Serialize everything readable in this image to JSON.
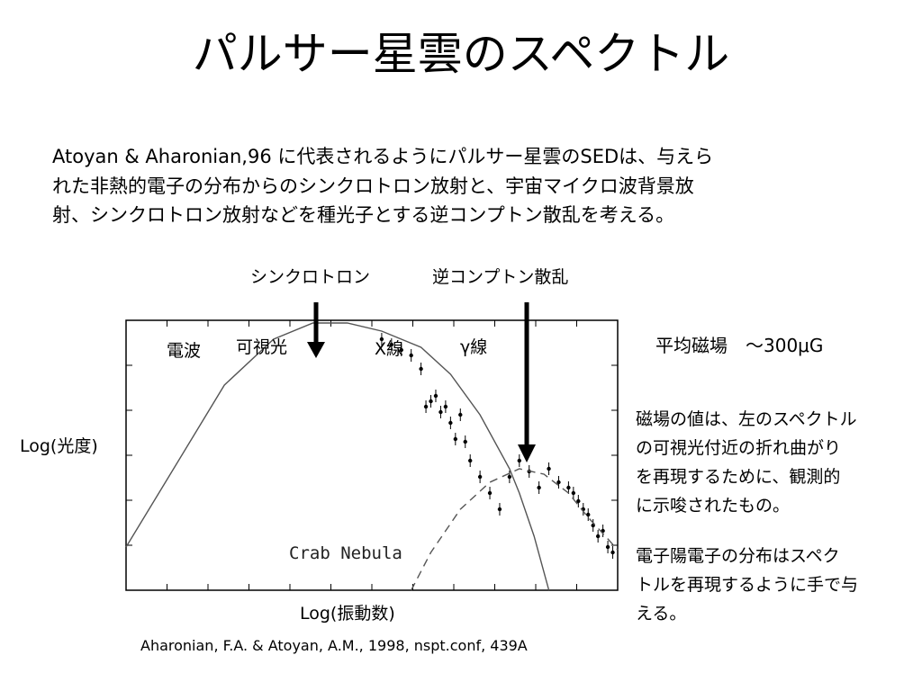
{
  "slide": {
    "title": "パルサー星雲のスペクトル",
    "intro_lines": [
      "Atoyan & Aharonian,96 に代表されるようにパルサー星雲のSEDは、与えら",
      "れた非熱的電子の分布からのシンクロトロン放射と、宇宙マイクロ波背景放",
      "射、シンクロトロン放射などを種光子とする逆コンプトン散乱を考える。"
    ],
    "arrow_label_sync": "シンクロトロン",
    "arrow_label_ic": "逆コンプトン散乱",
    "field_note": "平均磁場　～300μG",
    "note1_lines": [
      "磁場の値は、左のスペクトル",
      "の可視光付近の折れ曲がり",
      "を再現するために、観測的",
      "に示唆されたもの。"
    ],
    "note2_lines": [
      "電子陽電子の分布はスペク",
      "トルを再現するように手で与",
      "える。"
    ],
    "citation": "Aharonian, F.A. & Atoyan, A.M., 1998, nspt.conf, 439A"
  },
  "chart_data": {
    "type": "line",
    "xlabel": "Log(振動数)",
    "ylabel": "Log(光度)",
    "annotation": "Crab Nebula",
    "band_labels": [
      "電波",
      "可視光",
      "X線",
      "γ線"
    ],
    "xlim": [
      0,
      1
    ],
    "ylim": [
      0,
      1
    ],
    "series": [
      {
        "style": "solid",
        "x": [
          0.0,
          0.08,
          0.2,
          0.3,
          0.38,
          0.45,
          0.52,
          0.6,
          0.66,
          0.72,
          0.78,
          0.8,
          0.83,
          0.86
        ],
        "y": [
          0.16,
          0.4,
          0.76,
          0.93,
          0.99,
          0.99,
          0.96,
          0.9,
          0.8,
          0.65,
          0.45,
          0.36,
          0.2,
          0.0
        ]
      },
      {
        "style": "dashed",
        "x": [
          0.58,
          0.62,
          0.68,
          0.74,
          0.8,
          0.85,
          0.9,
          0.94,
          0.98,
          1.0
        ],
        "y": [
          0.0,
          0.14,
          0.3,
          0.4,
          0.45,
          0.43,
          0.36,
          0.27,
          0.19,
          0.15
        ]
      }
    ],
    "observations": {
      "x": [
        0.52,
        0.54,
        0.56,
        0.58,
        0.6,
        0.61,
        0.62,
        0.63,
        0.64,
        0.65,
        0.66,
        0.67,
        0.68,
        0.69,
        0.7,
        0.72,
        0.74,
        0.76,
        0.78,
        0.8,
        0.82,
        0.84,
        0.86,
        0.88,
        0.9,
        0.91,
        0.92,
        0.93,
        0.94,
        0.95,
        0.96,
        0.97,
        0.98,
        0.99
      ],
      "y": [
        0.93,
        0.91,
        0.89,
        0.87,
        0.82,
        0.68,
        0.7,
        0.72,
        0.66,
        0.68,
        0.62,
        0.56,
        0.65,
        0.55,
        0.48,
        0.42,
        0.36,
        0.3,
        0.42,
        0.48,
        0.44,
        0.38,
        0.45,
        0.4,
        0.38,
        0.36,
        0.33,
        0.3,
        0.28,
        0.24,
        0.2,
        0.22,
        0.16,
        0.14
      ]
    }
  }
}
